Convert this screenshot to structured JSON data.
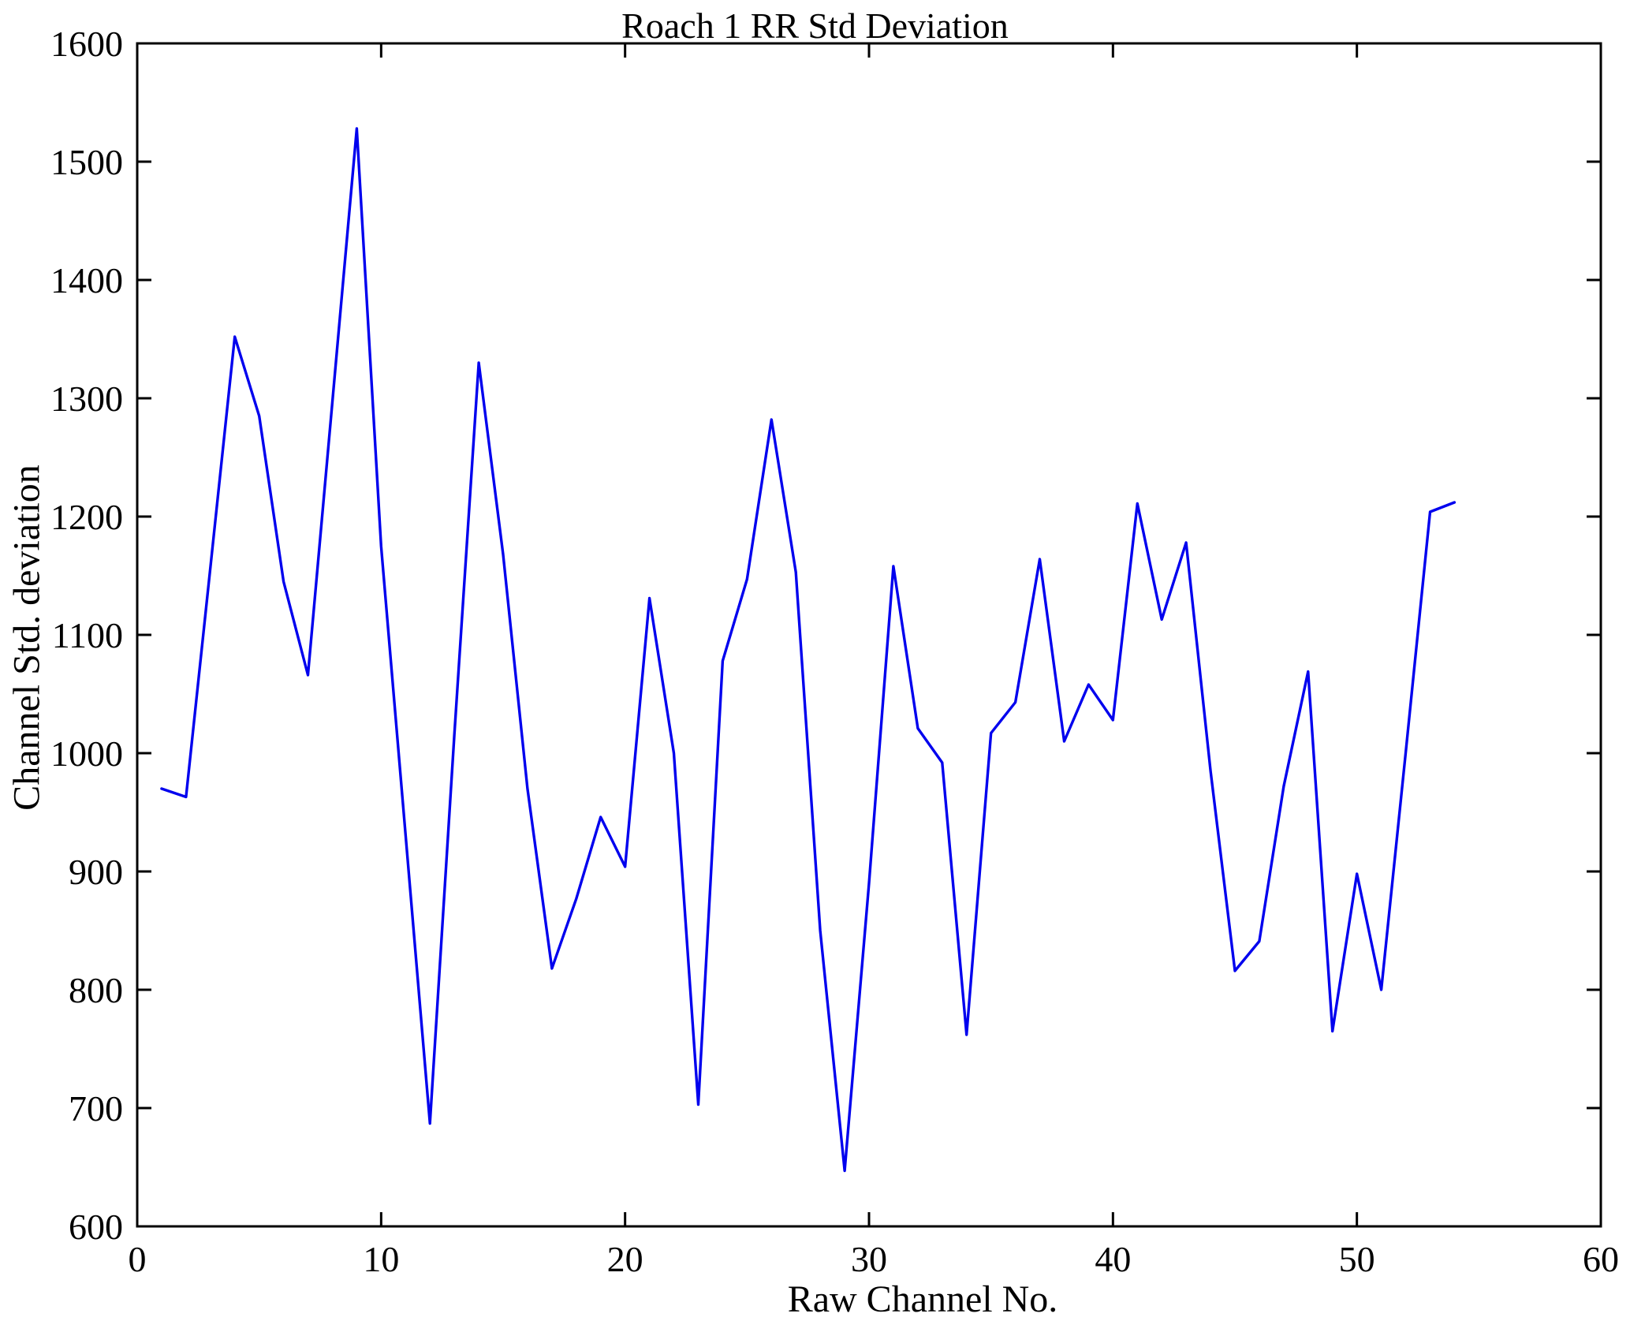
{
  "chart_data": {
    "type": "line",
    "title": "Roach 1 RR Std Deviation",
    "xlabel": "Raw Channel No.",
    "ylabel": "Channel Std. deviation",
    "xlim": [
      0,
      60
    ],
    "ylim": [
      600,
      1600
    ],
    "xticks": [
      0,
      10,
      20,
      30,
      40,
      50,
      60
    ],
    "yticks": [
      600,
      700,
      800,
      900,
      1000,
      1100,
      1200,
      1300,
      1400,
      1500,
      1600
    ],
    "grid": false,
    "legend": null,
    "line_color": "#0000ee",
    "axis_color": "#000000",
    "background_color": "#ffffff",
    "series": [
      {
        "name": "Channel Std. deviation",
        "x": [
          1,
          2,
          3,
          4,
          5,
          6,
          7,
          8,
          9,
          10,
          11,
          12,
          13,
          14,
          15,
          16,
          17,
          18,
          19,
          20,
          21,
          22,
          23,
          24,
          25,
          26,
          27,
          28,
          29,
          30,
          31,
          32,
          33,
          34,
          35,
          36,
          37,
          38,
          39,
          40,
          41,
          42,
          43,
          44,
          45,
          46,
          47,
          48,
          49,
          50,
          51,
          52,
          53,
          54
        ],
        "values": [
          970,
          963,
          1157,
          1352,
          1285,
          1145,
          1066,
          1297,
          1528,
          1175,
          931,
          687,
          1015,
          1330,
          1168,
          970,
          818,
          877,
          946,
          904,
          1131,
          1000,
          703,
          1078,
          1147,
          1282,
          1153,
          850,
          647,
          890,
          1158,
          1021,
          992,
          762,
          1017,
          1043,
          1164,
          1010,
          1058,
          1028,
          1211,
          1113,
          1178,
          985,
          816,
          841,
          972,
          1069,
          765,
          898,
          800,
          1000,
          1204,
          1212
        ]
      }
    ]
  }
}
